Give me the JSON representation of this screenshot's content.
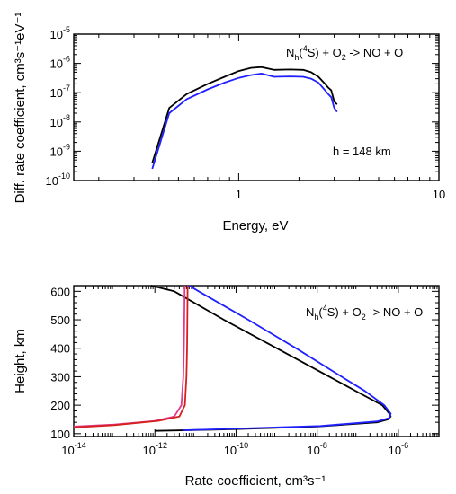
{
  "chart_data": [
    {
      "type": "line",
      "xscale": "log",
      "yscale": "log",
      "xlim": [
        0.15,
        10
      ],
      "ylim": [
        1e-10,
        1e-05
      ],
      "xticks": [
        {
          "v": 1,
          "label": "1"
        },
        {
          "v": 10,
          "label": "10"
        }
      ],
      "yticks": [
        {
          "v": 1e-05,
          "base": "10",
          "exp": "-5"
        },
        {
          "v": 1e-06,
          "base": "10",
          "exp": "-6"
        },
        {
          "v": 1e-07,
          "base": "10",
          "exp": "-7"
        },
        {
          "v": 1e-08,
          "base": "10",
          "exp": "-8"
        },
        {
          "v": 1e-09,
          "base": "10",
          "exp": "-9"
        },
        {
          "v": 1e-10,
          "base": "10",
          "exp": "-10"
        }
      ],
      "xlabel": "Energy, eV",
      "ylabel": "Diff. rate coefficient, cm³s⁻¹eV⁻¹",
      "reaction": {
        "n": "N",
        "nsub": "h",
        "state": "(",
        "statesup": "4",
        "rest": "S) + O",
        "o2sub": "2",
        "tail": " -> NO + O"
      },
      "annotation": "h = 148 km",
      "series": [
        {
          "color": "#000000",
          "points": [
            [
              0.37,
              4e-10
            ],
            [
              0.45,
              3e-08
            ],
            [
              0.55,
              9e-08
            ],
            [
              0.7,
              2e-07
            ],
            [
              0.85,
              3.5e-07
            ],
            [
              1.0,
              5.5e-07
            ],
            [
              1.15,
              7e-07
            ],
            [
              1.3,
              7.5e-07
            ],
            [
              1.5,
              6e-07
            ],
            [
              1.8,
              6.2e-07
            ],
            [
              2.1,
              6e-07
            ],
            [
              2.3,
              5e-07
            ],
            [
              2.5,
              3.5e-07
            ],
            [
              2.7,
              2e-07
            ],
            [
              2.8,
              1.5e-07
            ],
            [
              2.9,
              1.2e-07
            ],
            [
              3.0,
              5e-08
            ],
            [
              3.1,
              4e-08
            ]
          ]
        },
        {
          "color": "#2020ff",
          "points": [
            [
              0.37,
              2.5e-10
            ],
            [
              0.45,
              2e-08
            ],
            [
              0.55,
              6e-08
            ],
            [
              0.7,
              1.3e-07
            ],
            [
              0.85,
              2.2e-07
            ],
            [
              1.0,
              3.2e-07
            ],
            [
              1.15,
              4e-07
            ],
            [
              1.3,
              4.5e-07
            ],
            [
              1.5,
              3.5e-07
            ],
            [
              1.8,
              3.6e-07
            ],
            [
              2.1,
              3.5e-07
            ],
            [
              2.3,
              3e-07
            ],
            [
              2.5,
              2.2e-07
            ],
            [
              2.7,
              1.2e-07
            ],
            [
              2.8,
              9e-08
            ],
            [
              2.9,
              7e-08
            ],
            [
              3.0,
              3e-08
            ],
            [
              3.1,
              2.2e-08
            ]
          ]
        }
      ]
    },
    {
      "type": "line",
      "xscale": "log",
      "yscale": "linear",
      "xlim": [
        1e-14,
        1e-05
      ],
      "ylim": [
        90,
        620
      ],
      "xticks": [
        {
          "v": 1e-14,
          "base": "10",
          "exp": "-14"
        },
        {
          "v": 1e-12,
          "base": "10",
          "exp": "-12"
        },
        {
          "v": 1e-10,
          "base": "10",
          "exp": "-10"
        },
        {
          "v": 1e-08,
          "base": "10",
          "exp": "-8"
        },
        {
          "v": 1e-06,
          "base": "10",
          "exp": "-6"
        }
      ],
      "yticks": [
        {
          "v": 100,
          "label": "100"
        },
        {
          "v": 200,
          "label": "200"
        },
        {
          "v": 300,
          "label": "300"
        },
        {
          "v": 400,
          "label": "400"
        },
        {
          "v": 500,
          "label": "500"
        },
        {
          "v": 600,
          "label": "600"
        }
      ],
      "xlabel": "Rate coefficient, cm³s⁻¹",
      "ylabel": "Height, km",
      "reaction": {
        "n": "N",
        "nsub": "h",
        "state": "(",
        "statesup": "4",
        "rest": "S) + O",
        "o2sub": "2",
        "tail": " -> NO + O"
      },
      "series": [
        {
          "color": "#000000",
          "points": [
            [
              8e-13,
              620
            ],
            [
              3e-12,
              600
            ],
            [
              5e-11,
              500
            ],
            [
              1e-09,
              400
            ],
            [
              2e-08,
              300
            ],
            [
              1.2e-07,
              240
            ],
            [
              4e-07,
              200
            ],
            [
              6e-07,
              170
            ],
            [
              6.5e-07,
              160
            ],
            [
              5.5e-07,
              150
            ],
            [
              3e-07,
              140
            ],
            [
              1e-08,
              125
            ],
            [
              5e-11,
              115
            ],
            [
              1e-12,
              110
            ]
          ]
        },
        {
          "color": "#2020ff",
          "points": [
            [
              7e-12,
              620
            ],
            [
              1.2e-11,
              600
            ],
            [
              2e-10,
              500
            ],
            [
              3e-09,
              400
            ],
            [
              4e-08,
              300
            ],
            [
              1.5e-07,
              250
            ],
            [
              4.5e-07,
              200
            ],
            [
              6.5e-07,
              170
            ],
            [
              6e-07,
              155
            ],
            [
              3e-07,
              143
            ],
            [
              1.2e-08,
              127
            ],
            [
              8e-11,
              117
            ],
            [
              5e-12,
              112
            ]
          ]
        },
        {
          "color": "#e03a8a",
          "points": [
            [
              1e-14,
              125
            ],
            [
              1e-13,
              132
            ],
            [
              1e-12,
              145
            ],
            [
              3e-12,
              160
            ],
            [
              4.5e-12,
              200
            ],
            [
              5e-12,
              300
            ],
            [
              5.2e-12,
              400
            ],
            [
              5.3e-12,
              500
            ],
            [
              5.4e-12,
              620
            ]
          ]
        },
        {
          "color": "#d62020",
          "points": [
            [
              1e-14,
              122
            ],
            [
              1e-13,
              130
            ],
            [
              1.2e-12,
              145
            ],
            [
              4e-12,
              160
            ],
            [
              5.5e-12,
              200
            ],
            [
              6e-12,
              300
            ],
            [
              6.2e-12,
              400
            ],
            [
              6.3e-12,
              500
            ],
            [
              6.4e-12,
              620
            ]
          ]
        }
      ]
    }
  ]
}
